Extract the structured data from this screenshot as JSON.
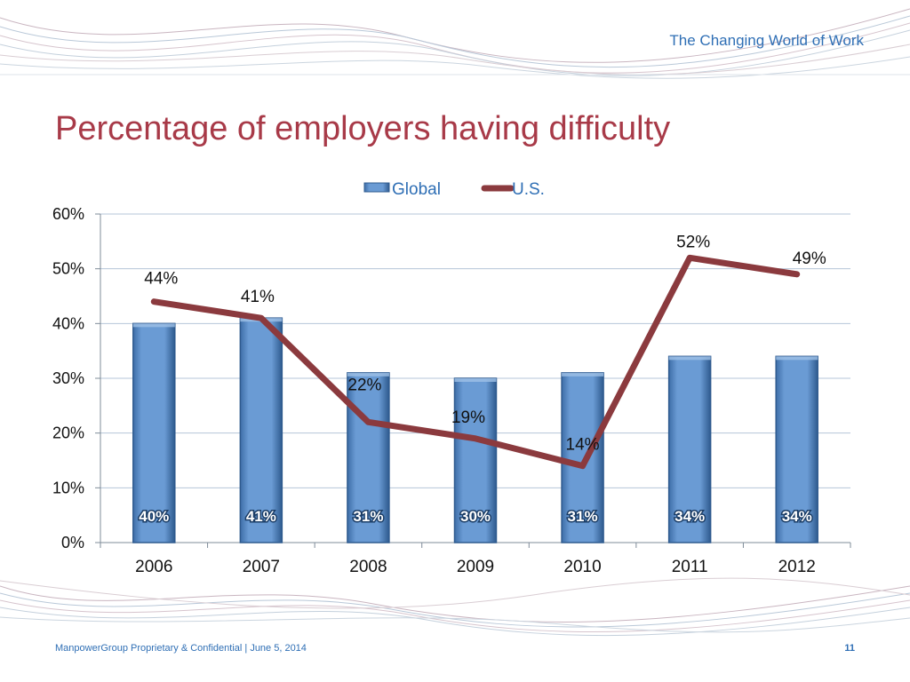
{
  "slide": {
    "header_tag": "The Changing World of Work",
    "title": "Percentage of employers having difficulty",
    "footer": {
      "company": "ManpowerGroup Proprietary & Confidential",
      "separator": "|",
      "date": "June 5, 2014",
      "page_number": "11"
    }
  },
  "colors": {
    "bar_fill": "#6a9bd4",
    "bar_stroke": "#2f5b8f",
    "line": "#8b3a3e",
    "title": "#a83a48",
    "accent_text": "#2f6fb5",
    "grid": "#b4c4d8"
  },
  "chart_data": {
    "type": "bar",
    "categories": [
      "2006",
      "2007",
      "2008",
      "2009",
      "2010",
      "2011",
      "2012"
    ],
    "series": [
      {
        "name": "Global",
        "type": "bar",
        "values": [
          40,
          41,
          31,
          30,
          31,
          34,
          34
        ],
        "labels": [
          "40%",
          "41%",
          "31%",
          "30%",
          "31%",
          "34%",
          "34%"
        ]
      },
      {
        "name": "U.S.",
        "type": "line",
        "values": [
          44,
          41,
          22,
          19,
          14,
          52,
          49
        ],
        "labels": [
          "44%",
          "41%",
          "22%",
          "19%",
          "14%",
          "52%",
          "49%"
        ]
      }
    ],
    "y_ticks": [
      "0%",
      "10%",
      "20%",
      "30%",
      "40%",
      "50%",
      "60%"
    ],
    "ylim": [
      0,
      60
    ],
    "legend_position": "top-center",
    "grid": true
  }
}
